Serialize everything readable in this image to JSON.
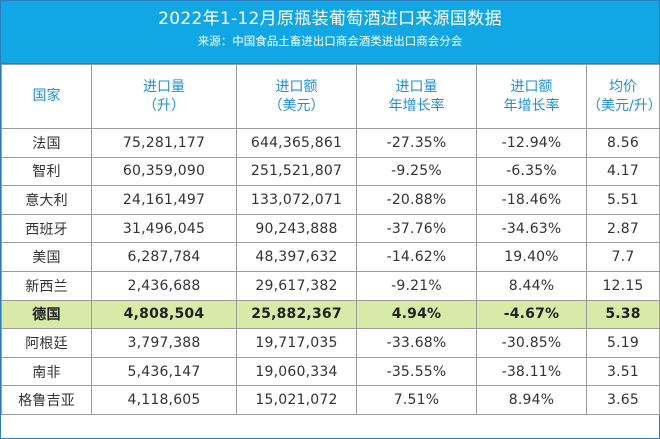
{
  "header": {
    "title": "2022年1-12月原瓶装葡萄酒进口来源国数据",
    "source": "来源：中国食品土畜进出口商会酒类进出口商会分会"
  },
  "columns": [
    {
      "line1": "国家",
      "line2": ""
    },
    {
      "line1": "进口量",
      "line2": "（升）"
    },
    {
      "line1": "进口额",
      "line2": "（美元）"
    },
    {
      "line1": "进口量",
      "line2": "年增长率"
    },
    {
      "line1": "进口额",
      "line2": "年增长率"
    },
    {
      "line1": "均价",
      "line2": "（美元/升）"
    }
  ],
  "rows": [
    {
      "country": "法国",
      "volume": "75,281,177",
      "value": "644,365,861",
      "volume_growth": "-27.35%",
      "value_growth": "-12.94%",
      "avg_price": "8.56"
    },
    {
      "country": "智利",
      "volume": "60,359,090",
      "value": "251,521,807",
      "volume_growth": "-9.25%",
      "value_growth": "-6.35%",
      "avg_price": "4.17"
    },
    {
      "country": "意大利",
      "volume": "24,161,497",
      "value": "133,072,071",
      "volume_growth": "-20.88%",
      "value_growth": "-18.46%",
      "avg_price": "5.51"
    },
    {
      "country": "西班牙",
      "volume": "31,496,045",
      "value": "90,243,888",
      "volume_growth": "-37.76%",
      "value_growth": "-34.63%",
      "avg_price": "2.87"
    },
    {
      "country": "美国",
      "volume": "6,287,784",
      "value": "48,397,632",
      "volume_growth": "-14.62%",
      "value_growth": "19.40%",
      "avg_price": "7.7"
    },
    {
      "country": "新西兰",
      "volume": "2,436,688",
      "value": "29,617,382",
      "volume_growth": "-9.21%",
      "value_growth": "8.44%",
      "avg_price": "12.15"
    },
    {
      "country": "德国",
      "volume": "4,808,504",
      "value": "25,882,367",
      "volume_growth": "4.94%",
      "value_growth": "-4.67%",
      "avg_price": "5.38"
    },
    {
      "country": "阿根廷",
      "volume": "3,797,388",
      "value": "19,717,035",
      "volume_growth": "-33.68%",
      "value_growth": "-30.85%",
      "avg_price": "5.19"
    },
    {
      "country": "南非",
      "volume": "5,436,147",
      "value": "19,060,334",
      "volume_growth": "-35.55%",
      "value_growth": "-38.11%",
      "avg_price": "3.51"
    },
    {
      "country": "格鲁吉亚",
      "volume": "4,118,605",
      "value": "15,021,072",
      "volume_growth": "7.51%",
      "value_growth": "8.94%",
      "avg_price": "3.65"
    }
  ],
  "colors": {
    "header_bg": "#11a6e4",
    "header_text": "#1f8fd8",
    "highlight_row": "#d9e9a8"
  }
}
